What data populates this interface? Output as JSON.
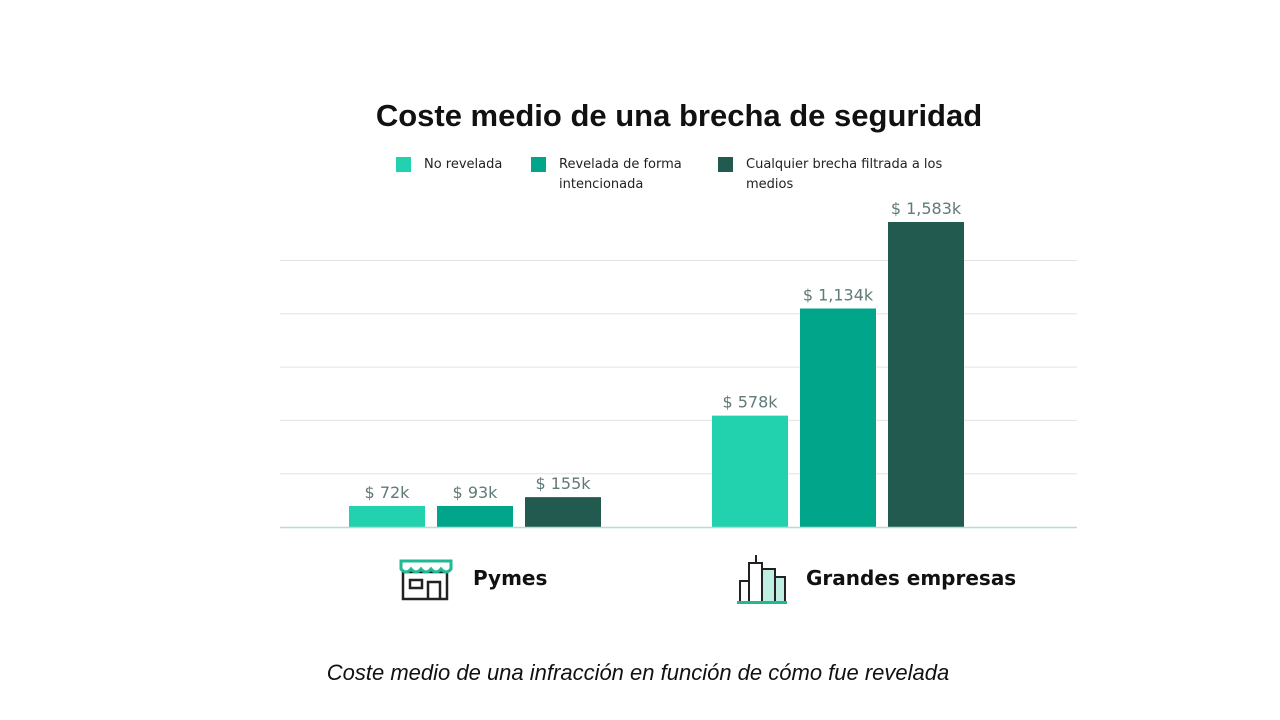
{
  "chart_data": {
    "type": "bar",
    "title": "Coste medio de una brecha de seguridad",
    "caption": "Coste medio de una infracción en función de cómo fue revelada",
    "categories": [
      "Pymes",
      "Grandes empresas"
    ],
    "category_icons": [
      "storefront-icon",
      "office-buildings-icon"
    ],
    "series": [
      {
        "name": "No revelada",
        "values": [
          72,
          578
        ],
        "labels": [
          "$ 72k",
          "$ 578k"
        ],
        "color": "#22d1ad"
      },
      {
        "name": "Revelada de forma intencionada",
        "values": [
          93,
          1134
        ],
        "labels": [
          "$ 93k",
          "$ 1,134k"
        ],
        "color": "#00a58a"
      },
      {
        "name": "Cualquier brecha filtrada a los medios",
        "values": [
          155,
          1583
        ],
        "labels": [
          "$ 155k",
          "$ 1,583k"
        ],
        "color": "#235a50"
      }
    ],
    "legend_lines": [
      [
        "No revelada"
      ],
      [
        "Revelada de forma",
        "intencionada"
      ],
      [
        "Cualquier brecha filtrada a los",
        "medios"
      ]
    ],
    "ylabel": "",
    "xlabel": "",
    "unit": "k $",
    "grid": true,
    "legend_position": "top"
  }
}
